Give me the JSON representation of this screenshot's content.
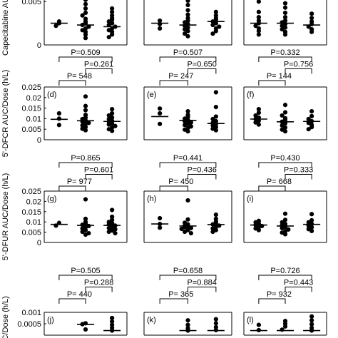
{
  "chart_data": [
    {
      "type": "scatter",
      "row": 0,
      "col": 0,
      "ylabel": "Capecitabine AUC/",
      "ylim": [
        0,
        0.006
      ],
      "yticks": [
        "0.005",
        "0"
      ],
      "ytick_values": [
        0.005,
        0
      ],
      "groups": [
        {
          "points": [
            0.0025,
            0.0027,
            0.0022
          ],
          "median": 0.0025
        },
        {
          "points": [
            0.0052,
            0.0047,
            0.0042,
            0.0037,
            0.0034,
            0.003,
            0.0027,
            0.0025,
            0.0023,
            0.0021,
            0.0019,
            0.0017,
            0.0015,
            0.0012,
            0.0008
          ],
          "median": 0.0023
        },
        {
          "points": [
            0.0042,
            0.0038,
            0.0034,
            0.0031,
            0.0029,
            0.0027,
            0.0025,
            0.0023,
            0.0021,
            0.0019,
            0.0017,
            0.0015,
            0.0012,
            0.0009
          ],
          "median": 0.0021
        }
      ]
    },
    {
      "type": "scatter",
      "row": 0,
      "col": 1,
      "ylim": [
        0,
        0.006
      ],
      "groups": [
        {
          "points": [
            0.0028,
            0.0024,
            0.0019
          ],
          "median": 0.0025
        },
        {
          "points": [
            0.0051,
            0.0046,
            0.004,
            0.0035,
            0.0031,
            0.0028,
            0.0026,
            0.0024,
            0.0022,
            0.002,
            0.0018,
            0.0016,
            0.0013,
            0.001
          ],
          "median": 0.0023
        },
        {
          "points": [
            0.0038,
            0.0034,
            0.0031,
            0.0029,
            0.0027,
            0.0025,
            0.0023,
            0.0021,
            0.0019,
            0.0016,
            0.0013
          ],
          "median": 0.0027
        }
      ]
    },
    {
      "type": "scatter",
      "row": 0,
      "col": 2,
      "ylim": [
        0,
        0.006
      ],
      "groups": [
        {
          "points": [
            0.005,
            0.0038,
            0.0032,
            0.0028,
            0.0025,
            0.0022,
            0.0019,
            0.0016,
            0.0012
          ],
          "median": 0.0025
        },
        {
          "points": [
            0.0048,
            0.0043,
            0.0037,
            0.0032,
            0.0028,
            0.0026,
            0.0024,
            0.0022,
            0.002,
            0.0018,
            0.0015,
            0.0012
          ],
          "median": 0.0025
        },
        {
          "points": [
            0.0036,
            0.0031,
            0.0027,
            0.0024,
            0.0021,
            0.0018,
            0.0015
          ],
          "median": 0.0023
        }
      ]
    },
    {
      "type": "scatter",
      "row": 1,
      "col": 0,
      "panel": "(d)",
      "ylabel": "5'-DFCR AUC/Dose (h/L)",
      "ylim": [
        0,
        0.025
      ],
      "yticks": [
        "0.025",
        "0.02",
        "0.015",
        "0.01",
        "0.005",
        "0"
      ],
      "ytick_values": [
        0.025,
        0.02,
        0.015,
        0.01,
        0.005,
        0
      ],
      "pvalues": [
        "P=0.509",
        "P=0.261",
        "P= 548"
      ],
      "groups": [
        {
          "points": [
            0.0125,
            0.01,
            0.007
          ],
          "median": 0.0097
        },
        {
          "points": [
            0.0205,
            0.016,
            0.014,
            0.0118,
            0.0105,
            0.0098,
            0.0092,
            0.0087,
            0.008,
            0.0074,
            0.0068,
            0.006,
            0.0052,
            0.0045
          ],
          "median": 0.009
        },
        {
          "points": [
            0.0145,
            0.0125,
            0.0115,
            0.0105,
            0.0098,
            0.009,
            0.0085,
            0.0078,
            0.0072,
            0.0065,
            0.0058,
            0.005,
            0.0042
          ],
          "median": 0.0087
        }
      ]
    },
    {
      "type": "scatter",
      "row": 1,
      "col": 1,
      "panel": "(e)",
      "ylim": [
        0,
        0.025
      ],
      "pvalues": [
        "P=0.507",
        "P=0.650",
        "P= 247"
      ],
      "groups": [
        {
          "points": [
            0.0148,
            0.0125,
            0.0075
          ],
          "median": 0.011
        },
        {
          "points": [
            0.0135,
            0.0118,
            0.0108,
            0.01,
            0.0094,
            0.0088,
            0.0082,
            0.0076,
            0.007,
            0.0063,
            0.0056,
            0.0048,
            0.004
          ],
          "median": 0.0092
        },
        {
          "points": [
            0.0225,
            0.0155,
            0.011,
            0.0098,
            0.0088,
            0.008,
            0.0074,
            0.0068,
            0.006,
            0.0052,
            0.0045
          ],
          "median": 0.0077
        }
      ]
    },
    {
      "type": "scatter",
      "row": 1,
      "col": 2,
      "panel": "(f)",
      "ylim": [
        0,
        0.025
      ],
      "pvalues": [
        "P=0.332",
        "P=0.756",
        "P= 144"
      ],
      "groups": [
        {
          "points": [
            0.0145,
            0.0128,
            0.0115,
            0.0105,
            0.0098,
            0.009,
            0.0082,
            0.0072
          ],
          "median": 0.0098
        },
        {
          "points": [
            0.0165,
            0.013,
            0.0115,
            0.0102,
            0.0094,
            0.0086,
            0.0078,
            0.0068,
            0.0058,
            0.0048,
            0.004
          ],
          "median": 0.0085
        },
        {
          "points": [
            0.0135,
            0.0112,
            0.0098,
            0.0088,
            0.008,
            0.007,
            0.006,
            0.005
          ],
          "median": 0.0087
        }
      ]
    },
    {
      "type": "scatter",
      "row": 2,
      "col": 0,
      "panel": "(g)",
      "ylabel": "5'-DFUR AUC/Dose (h/L)",
      "ylim": [
        0,
        0.025
      ],
      "yticks": [
        "0.025",
        "0.02",
        "0.015",
        "0.01",
        "0.005",
        "0"
      ],
      "ytick_values": [
        0.025,
        0.02,
        0.015,
        0.01,
        0.005,
        0
      ],
      "pvalues": [
        "P=0.865",
        "P=0.601",
        "P= 977"
      ],
      "groups": [
        {
          "points": [
            0.0095,
            0.0082
          ],
          "median": 0.0088
        },
        {
          "points": [
            0.021,
            0.0115,
            0.01,
            0.0092,
            0.0086,
            0.008,
            0.0074,
            0.0068,
            0.006,
            0.0052,
            0.0045,
            0.0038
          ],
          "median": 0.0083
        },
        {
          "points": [
            0.0158,
            0.0125,
            0.011,
            0.01,
            0.0094,
            0.0088,
            0.0082,
            0.0076,
            0.007,
            0.0064,
            0.0058,
            0.0052,
            0.0045
          ],
          "median": 0.0083
        }
      ]
    },
    {
      "type": "scatter",
      "row": 2,
      "col": 1,
      "panel": "(h)",
      "ylim": [
        0,
        0.025
      ],
      "pvalues": [
        "P=0.441",
        "P=0.436",
        "P= 450"
      ],
      "groups": [
        {
          "points": [
            0.0118,
            0.009,
            0.0072
          ],
          "median": 0.009
        },
        {
          "points": [
            0.0205,
            0.0112,
            0.0096,
            0.0088,
            0.0082,
            0.0078,
            0.0074,
            0.007,
            0.0066,
            0.006,
            0.0052,
            0.0045
          ],
          "median": 0.008
        },
        {
          "points": [
            0.0135,
            0.0115,
            0.0102,
            0.0095,
            0.0088,
            0.0082,
            0.0075,
            0.0068,
            0.006,
            0.0052
          ],
          "median": 0.0087
        }
      ]
    },
    {
      "type": "scatter",
      "row": 2,
      "col": 2,
      "panel": "(i)",
      "ylim": [
        0,
        0.025
      ],
      "pvalues": [
        "P=0.430",
        "P=0.333",
        "P= 668"
      ],
      "groups": [
        {
          "points": [
            0.0105,
            0.0098,
            0.0092,
            0.0085,
            0.008,
            0.0074,
            0.0068,
            0.006
          ],
          "median": 0.0085
        },
        {
          "points": [
            0.014,
            0.011,
            0.0098,
            0.009,
            0.0083,
            0.0076,
            0.007,
            0.0063,
            0.0055,
            0.0048,
            0.004
          ],
          "median": 0.008
        },
        {
          "points": [
            0.0138,
            0.0108,
            0.0098,
            0.009,
            0.0082,
            0.0074,
            0.0065,
            0.0056
          ],
          "median": 0.0088
        }
      ]
    },
    {
      "type": "scatter",
      "row": 3,
      "col": 0,
      "panel": "(j)",
      "ylabel": "AUC/Dose (h/L)",
      "ylim": [
        0,
        0.001
      ],
      "yticks": [
        "0.001",
        "0.0005"
      ],
      "ytick_values": [
        0.001,
        0.0005
      ],
      "pvalues": [
        "P=0.505",
        "P=0.288",
        "P= 440"
      ],
      "groups": [
        {
          "points": [],
          "median": null
        },
        {
          "points": [
            0.00052,
            0.00048,
            0.00025
          ],
          "median": 0.00047
        },
        {
          "points": [
            0.00075,
            0.0006,
            0.00045,
            0.00032,
            0.0002
          ],
          "median": 0.0002
        }
      ]
    },
    {
      "type": "scatter",
      "row": 3,
      "col": 1,
      "panel": "(k)",
      "ylim": [
        0,
        0.001
      ],
      "pvalues": [
        "P=0.658",
        "P=0.884",
        "P= 365"
      ],
      "groups": [
        {
          "points": [],
          "median": null
        },
        {
          "points": [
            0.00065,
            0.00045,
            0.0003,
            0.0002
          ],
          "median": 0.0002
        },
        {
          "points": [
            0.0007,
            0.00052,
            0.00035,
            0.00022
          ],
          "median": 0.0002
        }
      ]
    },
    {
      "type": "scatter",
      "row": 3,
      "col": 2,
      "panel": "(l)",
      "ylim": [
        0,
        0.001
      ],
      "pvalues": [
        "P=0.726",
        "P=0.443",
        "P= 932"
      ],
      "groups": [
        {
          "points": [
            0.00045,
            0.00022
          ],
          "median": 0.0002
        },
        {
          "points": [
            0.00062,
            0.0005,
            0.00038,
            0.00024
          ],
          "median": 0.0002
        },
        {
          "points": [
            0.00082,
            0.00065,
            0.00048,
            0.00032,
            0.0002
          ],
          "median": 0.0002
        }
      ]
    }
  ]
}
